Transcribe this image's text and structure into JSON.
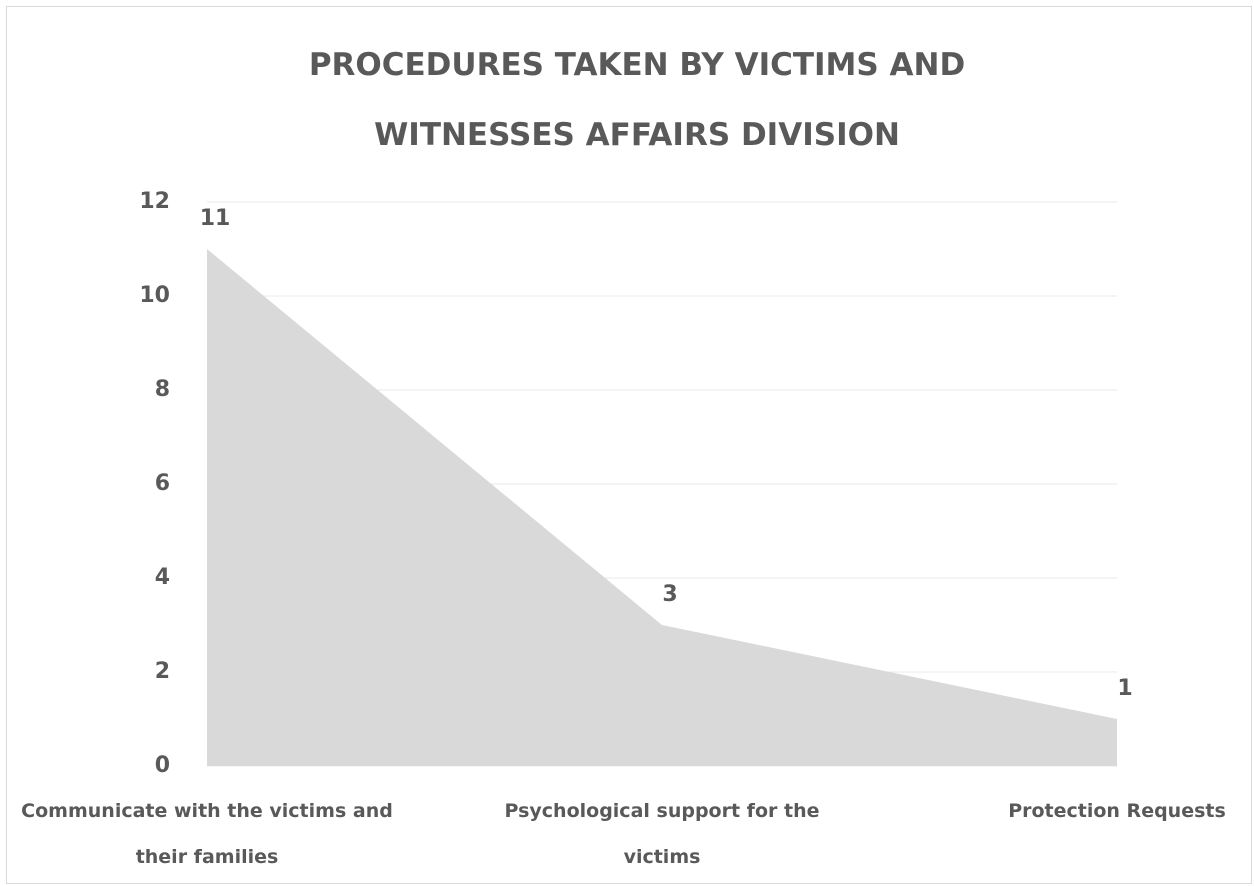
{
  "chart_data": {
    "type": "area",
    "title": "PROCEDURES TAKEN BY VICTIMS AND WITNESSES AFFAIRS DIVISION",
    "categories": [
      "Communicate with the victims and their families",
      "Psychological support for the victims",
      "Protection Requests"
    ],
    "values": [
      11,
      3,
      1
    ],
    "color": "#d9d9d9",
    "ylim": [
      0,
      12
    ],
    "yticks": [
      0,
      2,
      4,
      6,
      8,
      10,
      12
    ],
    "grid": true
  }
}
